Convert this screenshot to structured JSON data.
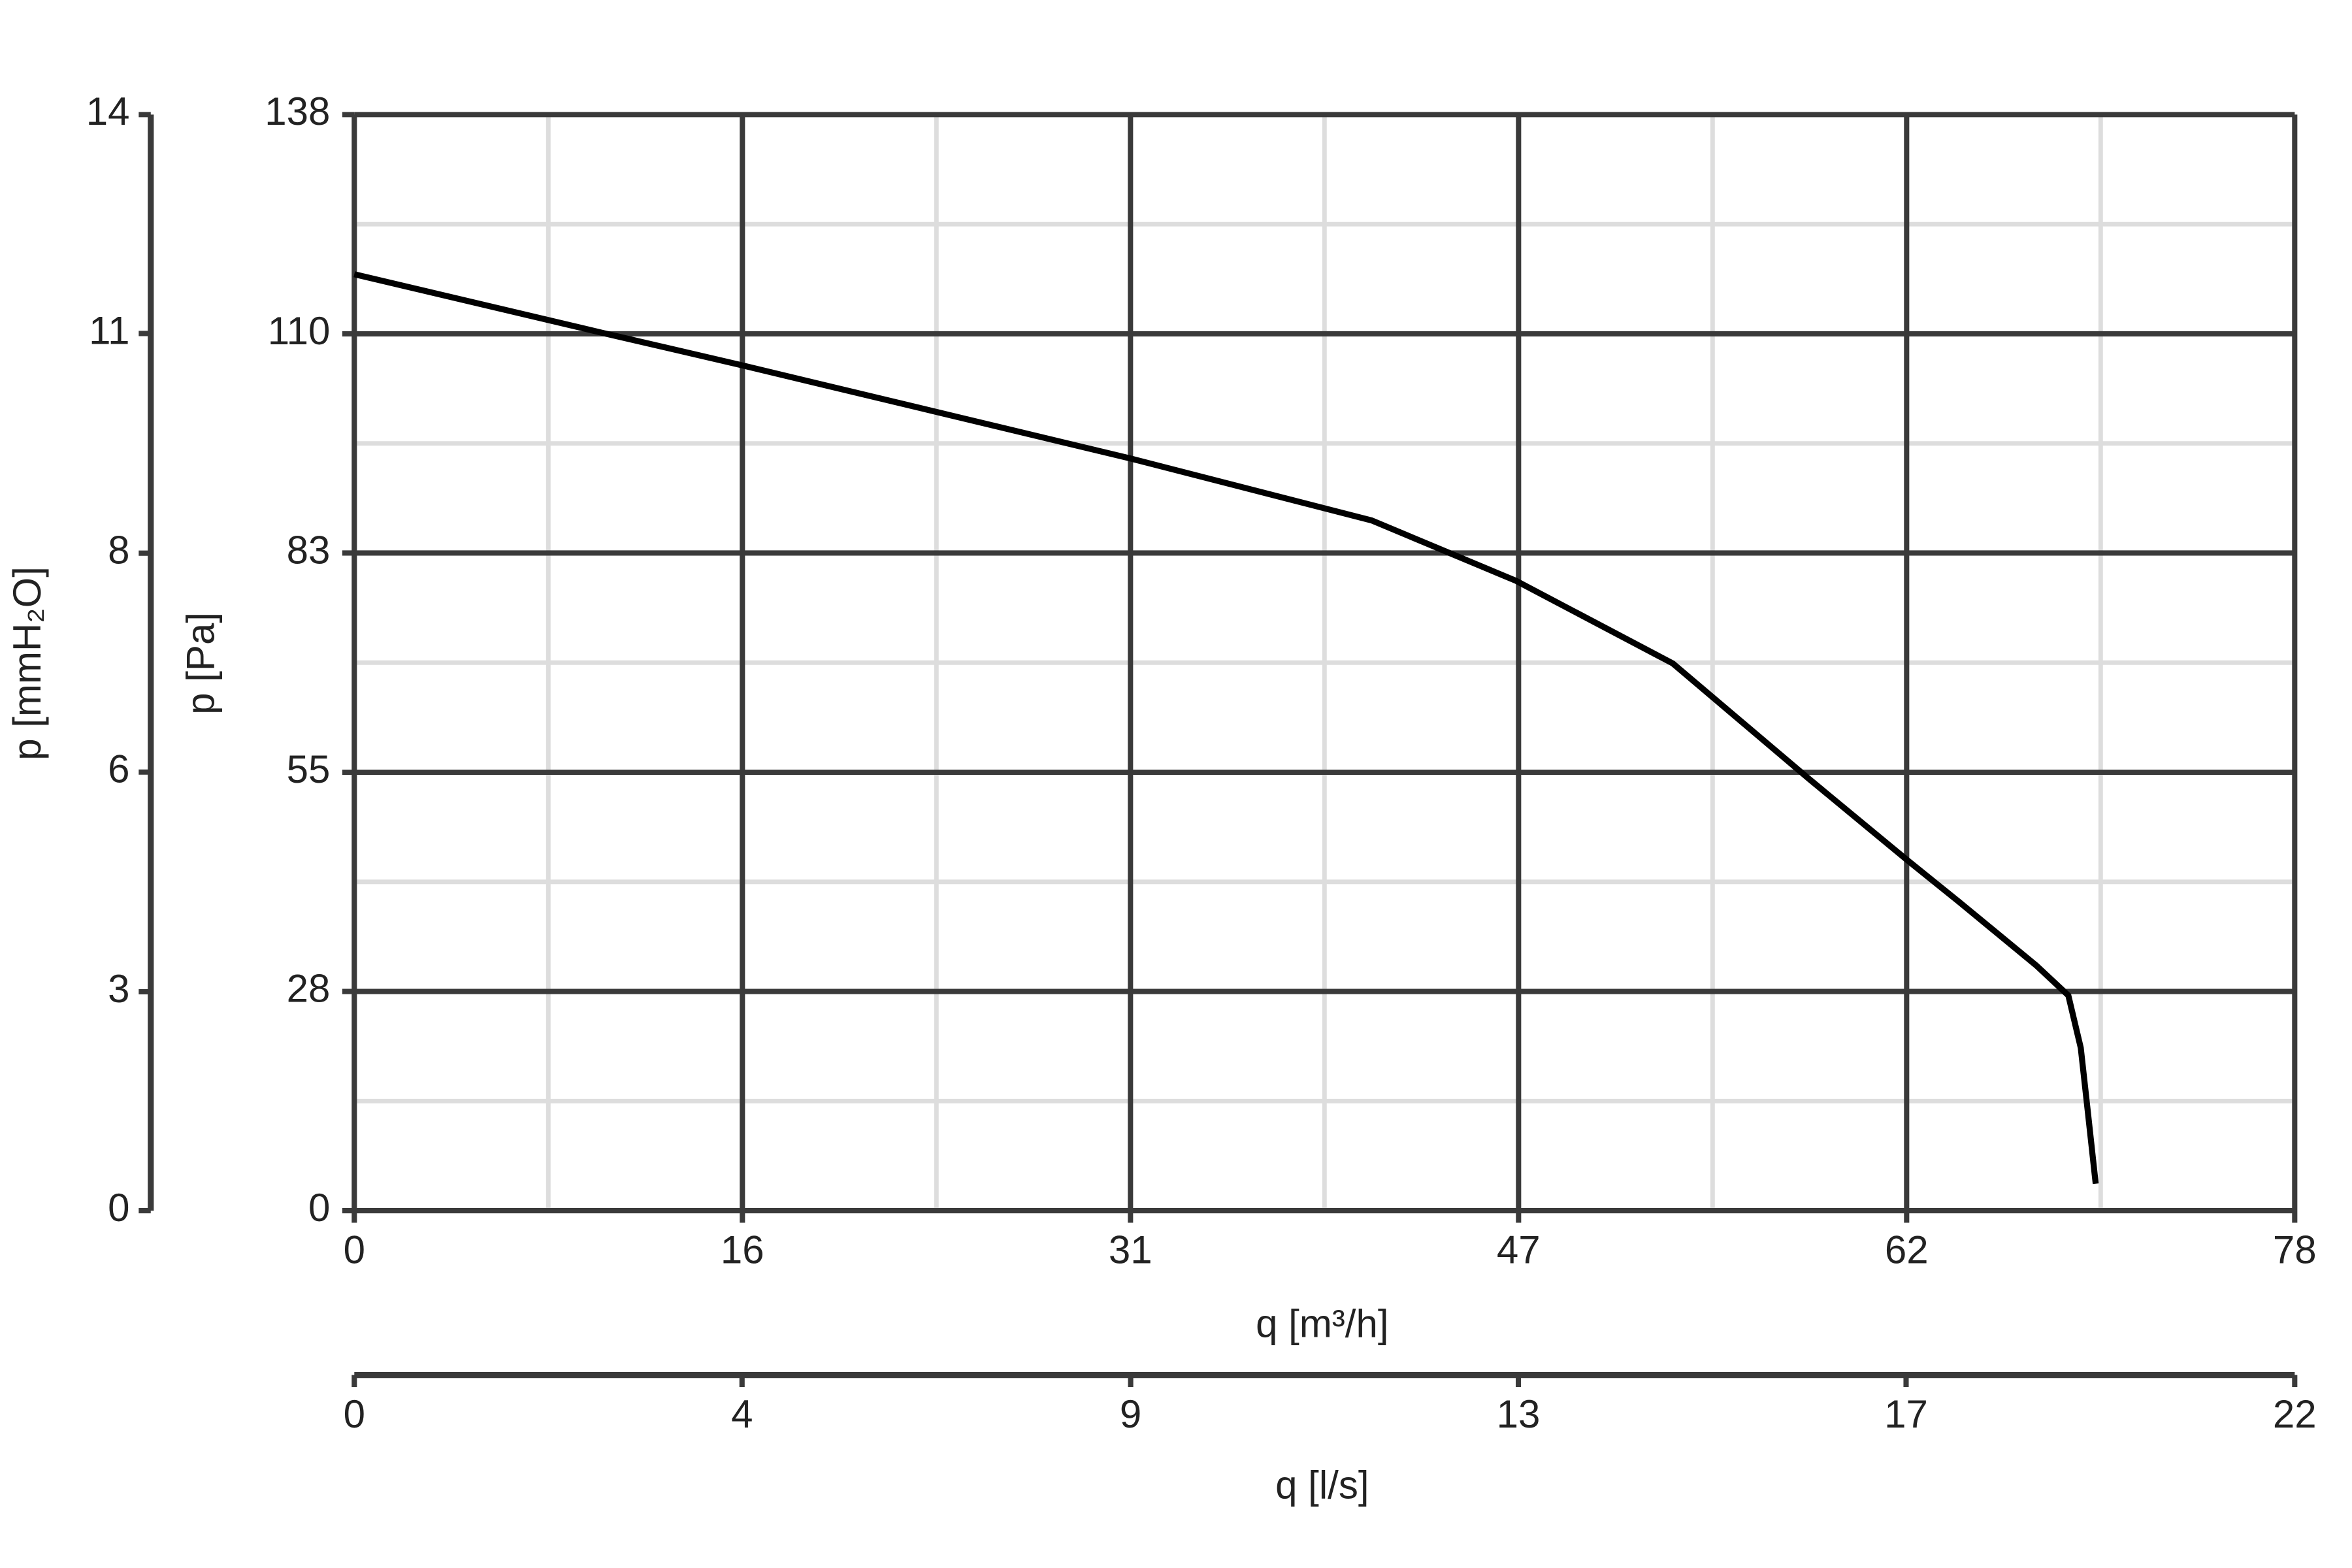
{
  "chart_data": {
    "type": "line",
    "xlabel": "q [m³/h]",
    "ylabel": "p [Pa]",
    "y2label": "p [mmH₂O]",
    "x2label": "q [l/s]",
    "x": [
      0,
      10.0,
      15.5,
      31.2,
      40.9,
      46.7,
      53.0,
      58.5,
      62.4,
      64.5,
      67.6,
      68.9,
      69.4,
      69.7,
      70.0
    ],
    "values": [
      117.9,
      110.5,
      106.5,
      94.7,
      86.9,
      79.3,
      68.9,
      54.3,
      44.2,
      38.9,
      30.9,
      27.1,
      20.5,
      12.0,
      3.4
    ],
    "color": "#000000",
    "xlim": [
      0,
      78
    ],
    "xticks": [
      0,
      {
        "value": 15.6,
        "label": "16"
      },
      {
        "value": 31.2,
        "label": "31"
      },
      {
        "value": 46.8,
        "label": "47"
      },
      {
        "value": 62.4,
        "label": "62"
      },
      78
    ],
    "ylim": [
      0,
      138
    ],
    "yticks": [
      0,
      {
        "value": 27.6,
        "label": "28"
      },
      {
        "value": 55.2,
        "label": "55"
      },
      {
        "value": 82.8,
        "label": "83"
      },
      {
        "value": 110.4,
        "label": "110"
      },
      138
    ],
    "y2lim": [
      0,
      14.07
    ],
    "y2ticks": [
      0,
      {
        "value": 2.81,
        "label": "3"
      },
      {
        "value": 5.63,
        "label": "6"
      },
      {
        "value": 8.44,
        "label": "8"
      },
      {
        "value": 11.26,
        "label": "11"
      },
      {
        "value": 14.07,
        "label": "14"
      }
    ],
    "x2lim": [
      0,
      21.67
    ],
    "x2ticks": [
      0,
      {
        "value": 4.33,
        "label": "4"
      },
      {
        "value": 8.67,
        "label": "9"
      },
      13,
      {
        "value": 17.33,
        "label": "17"
      },
      {
        "value": 21.67,
        "label": "22"
      }
    ],
    "grid": true
  }
}
